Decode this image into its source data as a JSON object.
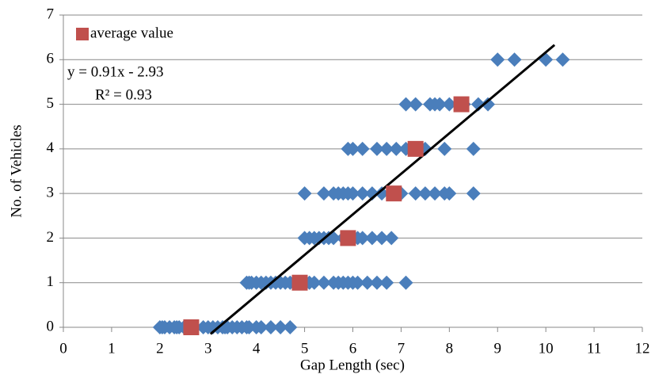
{
  "chart_data": {
    "type": "scatter",
    "xlabel": "Gap Length (sec)",
    "ylabel": "No. of Vehicles",
    "xlim": [
      0,
      12
    ],
    "xticks": [
      0,
      1,
      2,
      3,
      4,
      5,
      6,
      7,
      8,
      9,
      10,
      11,
      12
    ],
    "ylim": [
      0,
      7
    ],
    "yticks": [
      0,
      1,
      2,
      3,
      4,
      5,
      6,
      7
    ],
    "grid": true,
    "legend": "upper left",
    "series": [
      {
        "color": "#4a7ebb",
        "marker": "diamond",
        "x": [
          2.0,
          2.05,
          2.1,
          2.2,
          2.3,
          2.35,
          2.4,
          2.5,
          2.7,
          2.9,
          3.0,
          3.1,
          3.2,
          3.3,
          3.35,
          3.4,
          3.5,
          3.6,
          3.7,
          3.8,
          3.85,
          4.0,
          4.1,
          4.3,
          4.5,
          4.7,
          3.8,
          3.85,
          3.9,
          4.0,
          4.1,
          4.2,
          4.3,
          4.4,
          4.5,
          4.6,
          4.7,
          4.8,
          5.0,
          5.1,
          5.2,
          5.4,
          5.6,
          5.7,
          5.8,
          5.9,
          6.0,
          6.1,
          6.3,
          6.5,
          6.7,
          7.1,
          5.0,
          5.1,
          5.2,
          5.3,
          5.4,
          5.5,
          5.6,
          5.8,
          6.1,
          6.2,
          6.4,
          6.6,
          6.8,
          5.0,
          5.4,
          5.6,
          5.7,
          5.8,
          5.9,
          6.0,
          6.2,
          6.4,
          6.6,
          6.8,
          7.0,
          7.3,
          7.5,
          7.7,
          7.9,
          8.0,
          8.5,
          5.9,
          6.0,
          6.2,
          6.5,
          6.7,
          6.9,
          7.1,
          7.3,
          7.5,
          7.9,
          8.5,
          7.1,
          7.3,
          7.6,
          7.7,
          7.8,
          8.0,
          8.3,
          8.6,
          8.8,
          9.0,
          9.35,
          10.0,
          10.35
        ],
        "values": [
          0,
          0,
          0,
          0,
          0,
          0,
          0,
          0,
          0,
          0,
          0,
          0,
          0,
          0,
          0,
          0,
          0,
          0,
          0,
          0,
          0,
          0,
          0,
          0,
          0,
          0,
          1,
          1,
          1,
          1,
          1,
          1,
          1,
          1,
          1,
          1,
          1,
          1,
          1,
          1,
          1,
          1,
          1,
          1,
          1,
          1,
          1,
          1,
          1,
          1,
          1,
          1,
          2,
          2,
          2,
          2,
          2,
          2,
          2,
          2,
          2,
          2,
          2,
          2,
          2,
          3,
          3,
          3,
          3,
          3,
          3,
          3,
          3,
          3,
          3,
          3,
          3,
          3,
          3,
          3,
          3,
          3,
          3,
          4,
          4,
          4,
          4,
          4,
          4,
          4,
          4,
          4,
          4,
          4,
          5,
          5,
          5,
          5,
          5,
          5,
          5,
          5,
          5,
          6,
          6,
          6,
          6
        ]
      },
      {
        "name": "average value",
        "color": "#c0504d",
        "marker": "square",
        "x": [
          2.65,
          4.9,
          5.9,
          6.85,
          7.3,
          8.25
        ],
        "values": [
          0,
          1,
          2,
          3,
          4,
          5
        ]
      }
    ],
    "trendline": {
      "color": "#000000",
      "x": [
        3.05,
        10.18
      ],
      "values": [
        -0.15,
        6.33
      ]
    },
    "equation": "y = 0.91x - 2.93",
    "r_squared": "R² = 0.93"
  }
}
